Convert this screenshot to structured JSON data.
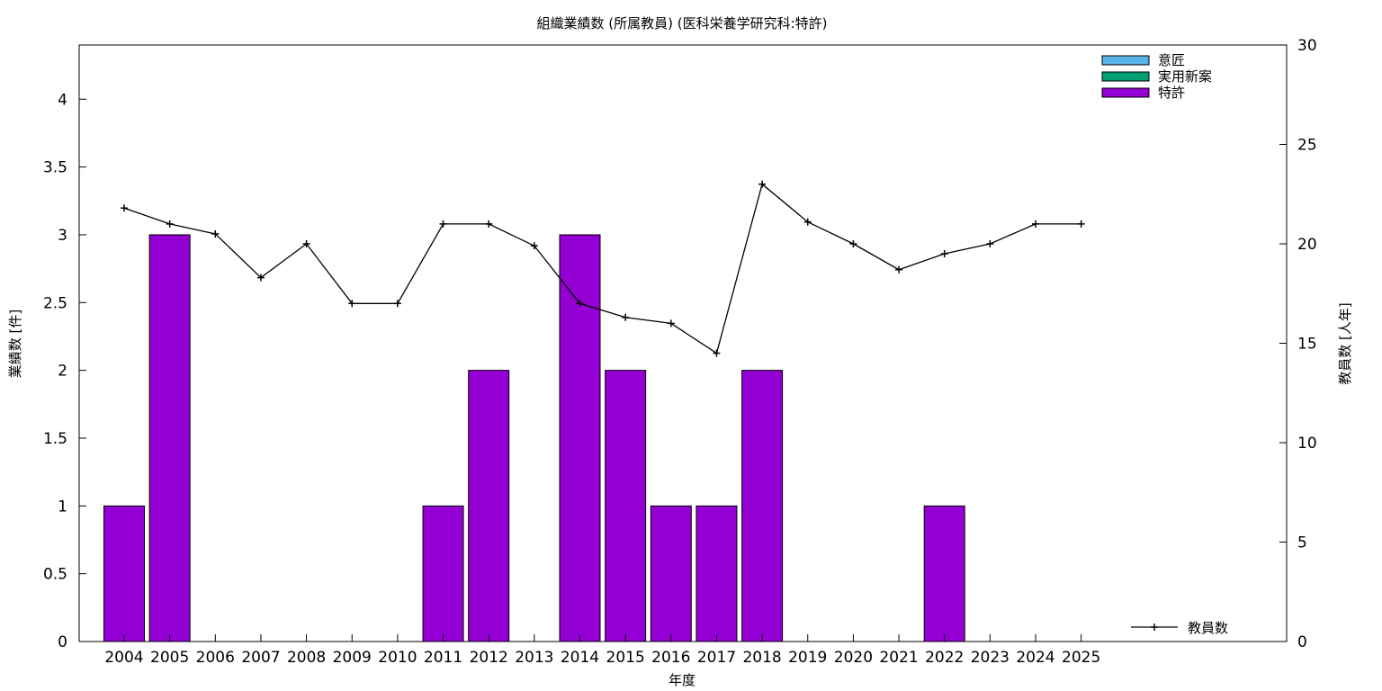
{
  "chart_data": {
    "type": "bar",
    "title": "組織業績数 (所属教員) (医科栄養学研究科:特許)",
    "xlabel": "年度",
    "ylabel": "業績数 [件]",
    "y2label": "教員数 [人年]",
    "categories": [
      "2004",
      "2005",
      "2006",
      "2007",
      "2008",
      "2009",
      "2010",
      "2011",
      "2012",
      "2013",
      "2014",
      "2015",
      "2016",
      "2017",
      "2018",
      "2019",
      "2020",
      "2021",
      "2022",
      "2023",
      "2024",
      "2025"
    ],
    "ylim": [
      0,
      4.4
    ],
    "y2lim": [
      0,
      30
    ],
    "yticks": [
      "0",
      "0.5",
      "1",
      "1.5",
      "2",
      "2.5",
      "3",
      "3.5",
      "4"
    ],
    "y2ticks": [
      "0",
      "5",
      "10",
      "15",
      "20",
      "25",
      "30"
    ],
    "grid": false,
    "legend_position": "top-right",
    "series": [
      {
        "name": "意匠",
        "color": "#56b4e9",
        "values": [
          0,
          0,
          0,
          0,
          0,
          0,
          0,
          0,
          0,
          0,
          0,
          0,
          0,
          0,
          0,
          0,
          0,
          0,
          0,
          0,
          0,
          0
        ]
      },
      {
        "name": "実用新案",
        "color": "#009e73",
        "values": [
          0,
          0,
          0,
          0,
          0,
          0,
          0,
          0,
          0,
          0,
          0,
          0,
          0,
          0,
          0,
          0,
          0,
          0,
          0,
          0,
          0,
          0
        ]
      },
      {
        "name": "特許",
        "color": "#9400d3",
        "values": [
          1,
          3,
          0,
          0,
          0,
          0,
          0,
          1,
          2,
          0,
          3,
          2,
          1,
          1,
          2,
          0,
          0,
          0,
          1,
          0,
          0,
          0
        ]
      }
    ],
    "line_series": {
      "name": "教員数",
      "color": "#000000",
      "axis": "y2",
      "values": [
        21.8,
        21,
        20.5,
        18.3,
        20,
        17,
        17,
        21,
        21,
        19.9,
        17,
        16.3,
        16,
        14.5,
        23,
        21.1,
        20,
        18.7,
        19.5,
        20,
        21,
        21
      ]
    }
  }
}
